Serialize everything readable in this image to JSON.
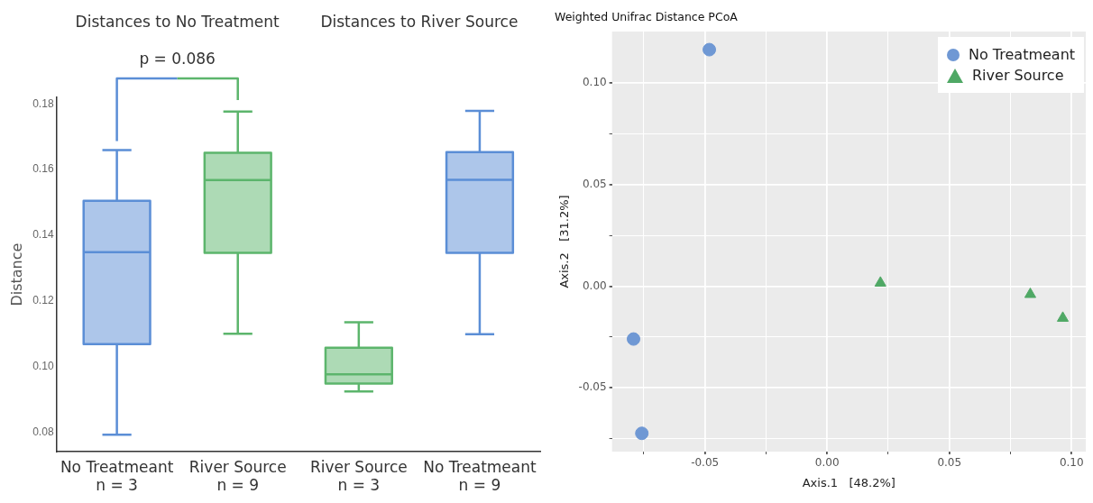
{
  "chart_data": [
    {
      "type": "box",
      "ylabel": "Distance",
      "categories": [
        "No Treatmeant\nn = 3",
        "River Source\nn = 9",
        "River Source\nn = 3",
        "No Treatmeant\nn = 9"
      ],
      "colors": [
        "#5b8ed6",
        "#5cb56c",
        "#5cb56c",
        "#5b8ed6"
      ],
      "boxes": [
        {
          "low": 0.0792,
          "q1": 0.1068,
          "median": 0.1348,
          "q3": 0.1505,
          "high": 0.1659
        },
        {
          "low": 0.11,
          "q1": 0.1346,
          "median": 0.1568,
          "q3": 0.1651,
          "high": 0.1777
        },
        {
          "low": 0.0924,
          "q1": 0.0948,
          "median": 0.0976,
          "q3": 0.1057,
          "high": 0.1135
        },
        {
          "low": 0.1098,
          "q1": 0.1346,
          "median": 0.1569,
          "q3": 0.1653,
          "high": 0.1779
        }
      ],
      "ylim": [
        0.074,
        0.182
      ],
      "yticks": [
        0.08,
        {
          "value": 0.1,
          "label": "0.10"
        },
        0.12,
        0.14,
        0.16,
        0.18
      ],
      "annotations": [
        "Distances to No Treatment",
        "Distances to River Source",
        "p = 0.086"
      ]
    },
    {
      "type": "scatter",
      "title": "Weighted Unifrac Distance PCoA",
      "xlabel": "Axis.1   [48.2%]",
      "ylabel": "Axis.2   [31.2%]",
      "series": [
        {
          "name": "No Treatmeant",
          "color": "#6f98d4",
          "marker": "circle",
          "x": [
            -0.0482,
            -0.0792,
            -0.0758
          ],
          "values": [
            0.1164,
            -0.026,
            -0.0724
          ]
        },
        {
          "name": "River Source",
          "color": "#4fa865",
          "marker": "triangle",
          "x": [
            0.0218,
            0.0831,
            0.0964
          ],
          "values": [
            0.0016,
            -0.004,
            -0.0157
          ]
        }
      ],
      "xlim": [
        -0.088,
        0.1058
      ],
      "ylim": [
        -0.0814,
        0.1253
      ],
      "xticks": [
        {
          "value": -0.075,
          "label": null
        },
        {
          "value": -0.05,
          "label": "-0.05"
        },
        {
          "value": -0.025,
          "label": null
        },
        {
          "value": 0,
          "label": "0.00"
        },
        {
          "value": 0.025,
          "label": null
        },
        {
          "value": 0.05,
          "label": "0.05"
        },
        {
          "value": 0.075,
          "label": null
        },
        {
          "value": 0.1,
          "label": "0.10"
        }
      ],
      "yticks": [
        {
          "value": -0.075,
          "label": null
        },
        {
          "value": -0.05,
          "label": "-0.05"
        },
        {
          "value": -0.025,
          "label": null
        },
        {
          "value": 0,
          "label": "0.00"
        },
        {
          "value": 0.025,
          "label": null
        },
        {
          "value": 0.05,
          "label": "0.05"
        },
        {
          "value": 0.075,
          "label": null
        },
        {
          "value": 0.1,
          "label": "0.10"
        }
      ],
      "grid": true,
      "legend": "top right"
    }
  ]
}
